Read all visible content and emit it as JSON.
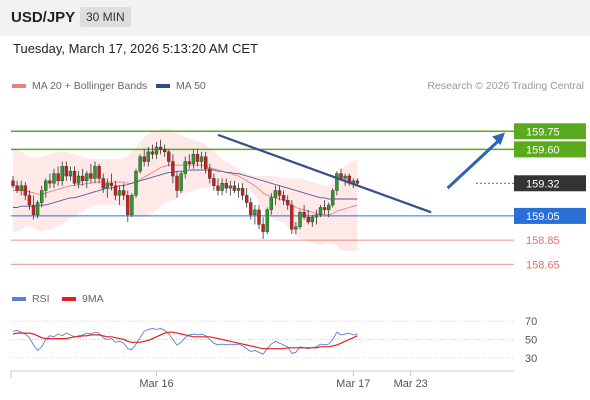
{
  "header": {
    "symbol": "USD/JPY",
    "timeframe": "30 MIN"
  },
  "datetime": "Tuesday, March 17, 2026 5:13:20 AM CET",
  "legend": {
    "ma20_label": "MA 20 + Bollinger Bands",
    "ma50_label": "MA 50",
    "credit": "Research © 2026 Trading Central",
    "ma20_color": "#f08080",
    "ma50_color": "#2c4f8c"
  },
  "rsi_legend": {
    "rsi_label": "RSI",
    "ma9_label": "9MA",
    "rsi_color": "#5b7fd6",
    "ma9_color": "#e02020"
  },
  "chart_data": [
    {
      "type": "candlestick",
      "ylim": [
        158.52,
        160.05
      ],
      "levels": [
        {
          "label": "159.75",
          "value": 159.75,
          "kind": "resistance",
          "color": "#5aaa1e"
        },
        {
          "label": "159.60",
          "value": 159.6,
          "kind": "resistance",
          "color": "#5aaa1e"
        },
        {
          "label": "159.32",
          "value": 159.32,
          "kind": "last-price",
          "color": "#333333"
        },
        {
          "label": "159.05",
          "value": 159.05,
          "kind": "support",
          "color": "#2a6fd6"
        },
        {
          "label": "158.85",
          "value": 158.85,
          "kind": "support",
          "color": "#e07070"
        },
        {
          "label": "158.65",
          "value": 158.65,
          "kind": "support",
          "color": "#e07070"
        }
      ],
      "x_ticks": [
        {
          "label": "Mar 16",
          "index": 35
        },
        {
          "label": "Mar 17",
          "index": 83
        },
        {
          "label": "Mar 23",
          "index": 97
        }
      ],
      "candles": [
        [
          159.34,
          159.38,
          159.28,
          159.3
        ],
        [
          159.3,
          159.34,
          159.24,
          159.26
        ],
        [
          159.26,
          159.34,
          159.22,
          159.3
        ],
        [
          159.3,
          159.33,
          159.18,
          159.22
        ],
        [
          159.22,
          159.26,
          159.1,
          159.14
        ],
        [
          159.14,
          159.22,
          159.02,
          159.06
        ],
        [
          159.06,
          159.18,
          159.03,
          159.16
        ],
        [
          159.16,
          159.3,
          159.12,
          159.26
        ],
        [
          159.26,
          159.36,
          159.2,
          159.34
        ],
        [
          159.34,
          159.4,
          159.28,
          159.32
        ],
        [
          159.32,
          159.44,
          159.28,
          159.4
        ],
        [
          159.4,
          159.46,
          159.3,
          159.34
        ],
        [
          159.34,
          159.5,
          159.3,
          159.46
        ],
        [
          159.46,
          159.5,
          159.34,
          159.38
        ],
        [
          159.38,
          159.46,
          159.34,
          159.42
        ],
        [
          159.42,
          159.46,
          159.3,
          159.32
        ],
        [
          159.32,
          159.42,
          159.28,
          159.38
        ],
        [
          159.38,
          159.44,
          159.3,
          159.34
        ],
        [
          159.34,
          159.42,
          159.28,
          159.4
        ],
        [
          159.4,
          159.48,
          159.32,
          159.36
        ],
        [
          159.36,
          159.5,
          159.32,
          159.46
        ],
        [
          159.46,
          159.48,
          159.32,
          159.36
        ],
        [
          159.36,
          159.4,
          159.24,
          159.28
        ],
        [
          159.28,
          159.36,
          159.2,
          159.32
        ],
        [
          159.32,
          159.4,
          159.26,
          159.3
        ],
        [
          159.3,
          159.34,
          159.18,
          159.22
        ],
        [
          159.22,
          159.3,
          159.14,
          159.26
        ],
        [
          159.26,
          159.32,
          159.18,
          159.22
        ],
        [
          159.22,
          159.26,
          159.0,
          159.06
        ],
        [
          159.06,
          159.24,
          159.04,
          159.22
        ],
        [
          159.22,
          159.44,
          159.2,
          159.42
        ],
        [
          159.42,
          159.56,
          159.4,
          159.54
        ],
        [
          159.54,
          159.6,
          159.46,
          159.5
        ],
        [
          159.5,
          159.62,
          159.46,
          159.58
        ],
        [
          159.58,
          159.64,
          159.52,
          159.56
        ],
        [
          159.56,
          159.66,
          159.52,
          159.62
        ],
        [
          159.62,
          159.68,
          159.56,
          159.6
        ],
        [
          159.6,
          159.64,
          159.54,
          159.58
        ],
        [
          159.58,
          159.6,
          159.46,
          159.5
        ],
        [
          159.5,
          159.56,
          159.32,
          159.38
        ],
        [
          159.38,
          159.42,
          159.2,
          159.26
        ],
        [
          159.26,
          159.42,
          159.24,
          159.4
        ],
        [
          159.4,
          159.54,
          159.36,
          159.5
        ],
        [
          159.5,
          159.56,
          159.44,
          159.48
        ],
        [
          159.48,
          159.6,
          159.44,
          159.56
        ],
        [
          159.56,
          159.6,
          159.46,
          159.5
        ],
        [
          159.5,
          159.58,
          159.44,
          159.54
        ],
        [
          159.54,
          159.58,
          159.4,
          159.44
        ],
        [
          159.44,
          159.48,
          159.32,
          159.36
        ],
        [
          159.36,
          159.4,
          159.26,
          159.3
        ],
        [
          159.3,
          159.36,
          159.22,
          159.26
        ],
        [
          159.26,
          159.36,
          159.22,
          159.32
        ],
        [
          159.32,
          159.36,
          159.24,
          159.28
        ],
        [
          159.28,
          159.34,
          159.22,
          159.3
        ],
        [
          159.3,
          159.34,
          159.24,
          159.26
        ],
        [
          159.26,
          159.32,
          159.2,
          159.28
        ],
        [
          159.28,
          159.32,
          159.18,
          159.22
        ],
        [
          159.22,
          159.28,
          159.12,
          159.16
        ],
        [
          159.16,
          159.2,
          159.02,
          159.06
        ],
        [
          159.06,
          159.14,
          158.98,
          159.1
        ],
        [
          159.1,
          159.14,
          158.94,
          158.98
        ],
        [
          158.98,
          159.04,
          158.86,
          158.92
        ],
        [
          158.92,
          159.12,
          158.9,
          159.1
        ],
        [
          159.1,
          159.24,
          159.06,
          159.2
        ],
        [
          159.2,
          159.3,
          159.14,
          159.26
        ],
        [
          159.26,
          159.3,
          159.18,
          159.22
        ],
        [
          159.22,
          159.26,
          159.14,
          159.18
        ],
        [
          159.18,
          159.22,
          159.1,
          159.14
        ],
        [
          159.14,
          159.18,
          158.9,
          158.94
        ],
        [
          158.94,
          159.0,
          158.9,
          158.96
        ],
        [
          158.96,
          159.1,
          158.94,
          159.08
        ],
        [
          159.08,
          159.14,
          159.02,
          159.04
        ],
        [
          159.04,
          159.1,
          158.98,
          159.0
        ],
        [
          159.0,
          159.06,
          158.96,
          159.04
        ],
        [
          159.04,
          159.1,
          158.98,
          159.06
        ],
        [
          159.06,
          159.14,
          159.04,
          159.12
        ],
        [
          159.12,
          159.18,
          159.06,
          159.1
        ],
        [
          159.1,
          159.16,
          159.04,
          159.14
        ],
        [
          159.14,
          159.28,
          159.12,
          159.26
        ],
        [
          159.26,
          159.42,
          159.22,
          159.4
        ],
        [
          159.4,
          159.44,
          159.34,
          159.36
        ],
        [
          159.36,
          159.4,
          159.3,
          159.38
        ],
        [
          159.38,
          159.4,
          159.3,
          159.32
        ],
        [
          159.32,
          159.36,
          159.28,
          159.34
        ],
        [
          159.34,
          159.36,
          159.3,
          159.32
        ]
      ],
      "bollinger": {
        "upper": [
          159.6,
          159.6,
          159.58,
          159.56,
          159.54,
          159.53,
          159.53,
          159.54,
          159.55,
          159.56,
          159.57,
          159.58,
          159.58,
          159.58,
          159.57,
          159.56,
          159.55,
          159.54,
          159.53,
          159.52,
          159.52,
          159.52,
          159.52,
          159.52,
          159.52,
          159.52,
          159.52,
          159.53,
          159.55,
          159.58,
          159.62,
          159.66,
          159.7,
          159.73,
          159.75,
          159.76,
          159.77,
          159.77,
          159.77,
          159.76,
          159.74,
          159.72,
          159.7,
          159.69,
          159.68,
          159.67,
          159.66,
          159.64,
          159.61,
          159.58,
          159.55,
          159.52,
          159.5,
          159.48,
          159.46,
          159.44,
          159.42,
          159.4,
          159.39,
          159.38,
          159.38,
          159.38,
          159.38,
          159.38,
          159.38,
          159.37,
          159.36,
          159.36,
          159.36,
          159.36,
          159.36,
          159.35,
          159.34,
          159.33,
          159.32,
          159.31,
          159.3,
          159.3,
          159.32,
          159.38,
          159.44,
          159.46,
          159.48,
          159.5,
          159.52
        ],
        "middle": [
          159.26,
          159.26,
          159.26,
          159.26,
          159.25,
          159.24,
          159.23,
          159.23,
          159.24,
          159.25,
          159.26,
          159.27,
          159.28,
          159.29,
          159.3,
          159.3,
          159.31,
          159.31,
          159.32,
          159.32,
          159.33,
          159.33,
          159.33,
          159.33,
          159.33,
          159.33,
          159.33,
          159.33,
          159.32,
          159.32,
          159.33,
          159.35,
          159.37,
          159.39,
          159.41,
          159.43,
          159.45,
          159.46,
          159.47,
          159.47,
          159.47,
          159.47,
          159.47,
          159.47,
          159.47,
          159.47,
          159.47,
          159.46,
          159.45,
          159.44,
          159.43,
          159.42,
          159.41,
          159.4,
          159.39,
          159.38,
          159.36,
          159.34,
          159.32,
          159.3,
          159.27,
          159.24,
          159.22,
          159.21,
          159.2,
          159.19,
          159.18,
          159.16,
          159.14,
          159.12,
          159.11,
          159.1,
          159.09,
          159.08,
          159.07,
          159.06,
          159.06,
          159.06,
          159.07,
          159.09,
          159.1,
          159.11,
          159.12,
          159.13,
          159.14
        ],
        "lower": [
          158.92,
          158.92,
          158.94,
          158.96,
          158.96,
          158.95,
          158.93,
          158.92,
          158.93,
          158.94,
          158.95,
          158.96,
          158.98,
          159.0,
          159.03,
          159.04,
          159.07,
          159.08,
          159.11,
          159.12,
          159.14,
          159.14,
          159.14,
          159.14,
          159.14,
          159.14,
          159.14,
          159.13,
          159.09,
          159.06,
          159.04,
          159.04,
          159.04,
          159.05,
          159.07,
          159.1,
          159.13,
          159.15,
          159.17,
          159.18,
          159.2,
          159.22,
          159.24,
          159.25,
          159.26,
          159.27,
          159.28,
          159.28,
          159.29,
          159.3,
          159.31,
          159.32,
          159.32,
          159.32,
          159.32,
          159.32,
          159.3,
          159.28,
          159.25,
          159.22,
          159.16,
          159.1,
          159.06,
          159.04,
          159.02,
          159.01,
          159.0,
          158.96,
          158.92,
          158.88,
          158.86,
          158.85,
          158.84,
          158.83,
          158.82,
          158.81,
          158.82,
          158.82,
          158.82,
          158.8,
          158.76,
          158.76,
          158.76,
          158.76,
          158.76
        ]
      },
      "ma50": [
        159.12,
        159.12,
        159.13,
        159.13,
        159.13,
        159.13,
        159.13,
        159.14,
        159.14,
        159.15,
        159.16,
        159.17,
        159.18,
        159.19,
        159.2,
        159.2,
        159.21,
        159.22,
        159.23,
        159.24,
        159.25,
        159.26,
        159.27,
        159.28,
        159.28,
        159.29,
        159.3,
        159.3,
        159.31,
        159.32,
        159.33,
        159.34,
        159.35,
        159.36,
        159.37,
        159.38,
        159.39,
        159.4,
        159.41,
        159.41,
        159.42,
        159.42,
        159.42,
        159.43,
        159.43,
        159.43,
        159.43,
        159.43,
        159.43,
        159.43,
        159.42,
        159.42,
        159.41,
        159.41,
        159.4,
        159.4,
        159.39,
        159.38,
        159.37,
        159.36,
        159.35,
        159.34,
        159.33,
        159.32,
        159.31,
        159.3,
        159.29,
        159.28,
        159.27,
        159.26,
        159.25,
        159.24,
        159.23,
        159.22,
        159.21,
        159.2,
        159.2,
        159.19,
        159.19,
        159.19,
        159.19,
        159.19,
        159.19,
        159.19,
        159.19
      ],
      "trendlines": [
        {
          "from": {
            "index": 50,
            "value": 159.72
          },
          "to": {
            "index": 102,
            "value": 159.08
          },
          "color": "#344f8a"
        }
      ],
      "forecast_arrow": {
        "from": {
          "index": 106,
          "value": 159.28
        },
        "to": {
          "index": 120,
          "value": 159.74
        },
        "color": "#2f63b6"
      }
    },
    {
      "type": "line",
      "ylim": [
        20,
        80
      ],
      "y_ticks": [
        70,
        50,
        30
      ],
      "series": [
        {
          "name": "RSI",
          "color": "#5b7fd6",
          "values": [
            59,
            60,
            58,
            56,
            52,
            44,
            38,
            42,
            50,
            54,
            53,
            56,
            54,
            57,
            55,
            53,
            54,
            55,
            57,
            56,
            58,
            57,
            52,
            50,
            51,
            47,
            48,
            46,
            40,
            39,
            45,
            52,
            59,
            61,
            62,
            61,
            62,
            60,
            56,
            50,
            44,
            47,
            52,
            55,
            56,
            55,
            56,
            54,
            50,
            46,
            44,
            45,
            44,
            45,
            44,
            45,
            43,
            40,
            37,
            38,
            36,
            34,
            40,
            45,
            48,
            46,
            44,
            42,
            35,
            36,
            42,
            41,
            40,
            41,
            42,
            45,
            44,
            45,
            50,
            58,
            55,
            56,
            57,
            55,
            56
          ]
        },
        {
          "name": "9MA",
          "color": "#e02020",
          "values": [
            56,
            57,
            57,
            57,
            57,
            56,
            54,
            52,
            51,
            51,
            51,
            51,
            51,
            51,
            52,
            53,
            53,
            54,
            54,
            55,
            55,
            55,
            54,
            53,
            53,
            52,
            51,
            50,
            48,
            47,
            47,
            47,
            48,
            49,
            51,
            53,
            55,
            57,
            58,
            58,
            57,
            56,
            55,
            54,
            53,
            53,
            53,
            53,
            53,
            52,
            51,
            50,
            49,
            48,
            47,
            46,
            45,
            44,
            43,
            42,
            41,
            40,
            40,
            40,
            40,
            40,
            40,
            41,
            41,
            41,
            41,
            41,
            41,
            41,
            41,
            42,
            42,
            42,
            43,
            44,
            46,
            48,
            50,
            52,
            54
          ]
        }
      ],
      "x_ticks": [
        "Mar 16",
        "Mar 17",
        "Mar 23"
      ]
    }
  ]
}
